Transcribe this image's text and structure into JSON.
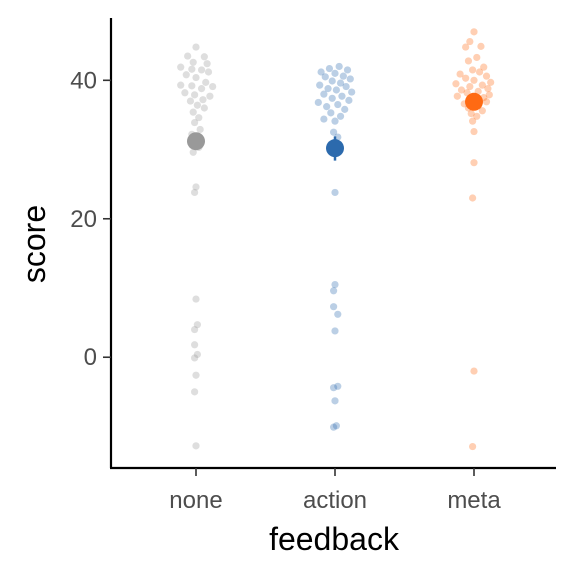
{
  "chart_data": {
    "type": "scatter",
    "title": "",
    "xlabel": "feedback",
    "ylabel": "score",
    "categories": [
      "none",
      "action",
      "meta"
    ],
    "ylim": [
      -16,
      49
    ],
    "yticks": [
      0,
      20,
      40
    ],
    "grid": false,
    "legend": "none",
    "series": [
      {
        "category": "none",
        "color": "#999999",
        "mean": 31.2,
        "ci": [
          30.0,
          32.4
        ],
        "points": [
          {
            "y": 44.8,
            "dx": 0.0
          },
          {
            "y": 43.5,
            "dx": -0.06
          },
          {
            "y": 43.4,
            "dx": 0.06
          },
          {
            "y": 42.6,
            "dx": -0.02
          },
          {
            "y": 42.4,
            "dx": 0.08
          },
          {
            "y": 41.9,
            "dx": -0.11
          },
          {
            "y": 41.6,
            "dx": -0.03
          },
          {
            "y": 41.5,
            "dx": 0.04
          },
          {
            "y": 41.2,
            "dx": 0.09
          },
          {
            "y": 40.8,
            "dx": -0.07
          },
          {
            "y": 40.4,
            "dx": 0.0
          },
          {
            "y": 39.7,
            "dx": 0.07
          },
          {
            "y": 39.3,
            "dx": -0.11
          },
          {
            "y": 39.2,
            "dx": -0.03
          },
          {
            "y": 39.1,
            "dx": 0.12
          },
          {
            "y": 38.8,
            "dx": 0.04
          },
          {
            "y": 38.2,
            "dx": -0.08
          },
          {
            "y": 37.9,
            "dx": -0.01
          },
          {
            "y": 37.7,
            "dx": 0.1
          },
          {
            "y": 37.2,
            "dx": 0.05
          },
          {
            "y": 37.0,
            "dx": -0.04
          },
          {
            "y": 36.4,
            "dx": 0.01
          },
          {
            "y": 36.0,
            "dx": 0.06
          },
          {
            "y": 35.4,
            "dx": -0.02
          },
          {
            "y": 34.6,
            "dx": 0.02
          },
          {
            "y": 33.9,
            "dx": -0.01
          },
          {
            "y": 32.9,
            "dx": 0.03
          },
          {
            "y": 32.2,
            "dx": -0.03
          },
          {
            "y": 30.3,
            "dx": 0.02
          },
          {
            "y": 29.6,
            "dx": -0.02
          },
          {
            "y": 24.6,
            "dx": 0.0
          },
          {
            "y": 23.8,
            "dx": -0.01
          },
          {
            "y": 8.4,
            "dx": 0.0
          },
          {
            "y": 4.7,
            "dx": 0.01
          },
          {
            "y": 4.0,
            "dx": -0.01
          },
          {
            "y": 1.8,
            "dx": -0.01
          },
          {
            "y": 0.4,
            "dx": 0.01
          },
          {
            "y": -0.1,
            "dx": -0.01
          },
          {
            "y": -2.6,
            "dx": 0.0
          },
          {
            "y": -5.0,
            "dx": -0.01
          },
          {
            "y": -12.8,
            "dx": 0.0
          }
        ]
      },
      {
        "category": "action",
        "color": "#2c6aad",
        "mean": 30.2,
        "ci": [
          28.4,
          31.9
        ],
        "points": [
          {
            "y": 42.0,
            "dx": 0.03
          },
          {
            "y": 41.7,
            "dx": -0.04
          },
          {
            "y": 41.5,
            "dx": 0.09
          },
          {
            "y": 41.2,
            "dx": -0.1
          },
          {
            "y": 41.0,
            "dx": 0.0
          },
          {
            "y": 40.6,
            "dx": 0.06
          },
          {
            "y": 40.5,
            "dx": -0.07
          },
          {
            "y": 40.2,
            "dx": 0.11
          },
          {
            "y": 39.9,
            "dx": -0.02
          },
          {
            "y": 39.6,
            "dx": 0.04
          },
          {
            "y": 39.3,
            "dx": -0.11
          },
          {
            "y": 39.1,
            "dx": 0.08
          },
          {
            "y": 38.8,
            "dx": -0.05
          },
          {
            "y": 38.6,
            "dx": 0.01
          },
          {
            "y": 38.3,
            "dx": 0.12
          },
          {
            "y": 38.0,
            "dx": -0.08
          },
          {
            "y": 37.7,
            "dx": 0.05
          },
          {
            "y": 37.4,
            "dx": -0.02
          },
          {
            "y": 37.1,
            "dx": 0.1
          },
          {
            "y": 36.8,
            "dx": -0.12
          },
          {
            "y": 36.5,
            "dx": 0.02
          },
          {
            "y": 36.2,
            "dx": -0.06
          },
          {
            "y": 35.8,
            "dx": 0.07
          },
          {
            "y": 35.3,
            "dx": -0.03
          },
          {
            "y": 34.8,
            "dx": 0.04
          },
          {
            "y": 34.4,
            "dx": -0.08
          },
          {
            "y": 34.1,
            "dx": 0.0
          },
          {
            "y": 32.5,
            "dx": -0.01
          },
          {
            "y": 31.8,
            "dx": 0.02
          },
          {
            "y": 23.8,
            "dx": 0.0
          },
          {
            "y": 10.5,
            "dx": 0.0
          },
          {
            "y": 9.6,
            "dx": -0.01
          },
          {
            "y": 7.3,
            "dx": -0.01
          },
          {
            "y": 6.2,
            "dx": 0.02
          },
          {
            "y": 3.8,
            "dx": 0.0
          },
          {
            "y": -4.2,
            "dx": 0.02
          },
          {
            "y": -4.4,
            "dx": -0.01
          },
          {
            "y": -6.3,
            "dx": 0.0
          },
          {
            "y": -9.9,
            "dx": 0.01
          },
          {
            "y": -10.1,
            "dx": -0.01
          }
        ]
      },
      {
        "category": "meta",
        "color": "#ff6a13",
        "mean": 36.9,
        "ci": [
          35.8,
          38.0
        ],
        "points": [
          {
            "y": 47.0,
            "dx": 0.0
          },
          {
            "y": 45.6,
            "dx": -0.03
          },
          {
            "y": 44.9,
            "dx": 0.05
          },
          {
            "y": 44.8,
            "dx": -0.06
          },
          {
            "y": 43.3,
            "dx": 0.02
          },
          {
            "y": 42.8,
            "dx": -0.04
          },
          {
            "y": 41.9,
            "dx": 0.07
          },
          {
            "y": 41.5,
            "dx": -0.01
          },
          {
            "y": 41.2,
            "dx": 0.04
          },
          {
            "y": 40.9,
            "dx": -0.1
          },
          {
            "y": 40.6,
            "dx": 0.09
          },
          {
            "y": 40.3,
            "dx": -0.06
          },
          {
            "y": 40.0,
            "dx": 0.0
          },
          {
            "y": 39.7,
            "dx": 0.12
          },
          {
            "y": 39.5,
            "dx": -0.13
          },
          {
            "y": 39.3,
            "dx": 0.06
          },
          {
            "y": 39.1,
            "dx": -0.03
          },
          {
            "y": 38.8,
            "dx": 0.1
          },
          {
            "y": 38.6,
            "dx": -0.09
          },
          {
            "y": 38.4,
            "dx": 0.03
          },
          {
            "y": 38.2,
            "dx": -0.05
          },
          {
            "y": 37.9,
            "dx": 0.11
          },
          {
            "y": 37.7,
            "dx": -0.12
          },
          {
            "y": 37.5,
            "dx": 0.07
          },
          {
            "y": 37.2,
            "dx": -0.02
          },
          {
            "y": 36.9,
            "dx": 0.09
          },
          {
            "y": 36.6,
            "dx": -0.07
          },
          {
            "y": 36.3,
            "dx": 0.03
          },
          {
            "y": 36.0,
            "dx": -0.04
          },
          {
            "y": 35.6,
            "dx": 0.06
          },
          {
            "y": 35.2,
            "dx": -0.02
          },
          {
            "y": 34.8,
            "dx": 0.02
          },
          {
            "y": 34.1,
            "dx": -0.01
          },
          {
            "y": 32.6,
            "dx": 0.0
          },
          {
            "y": 28.1,
            "dx": 0.0
          },
          {
            "y": 23.0,
            "dx": -0.01
          },
          {
            "y": -2.0,
            "dx": 0.0
          },
          {
            "y": -12.9,
            "dx": -0.01
          }
        ]
      }
    ]
  }
}
